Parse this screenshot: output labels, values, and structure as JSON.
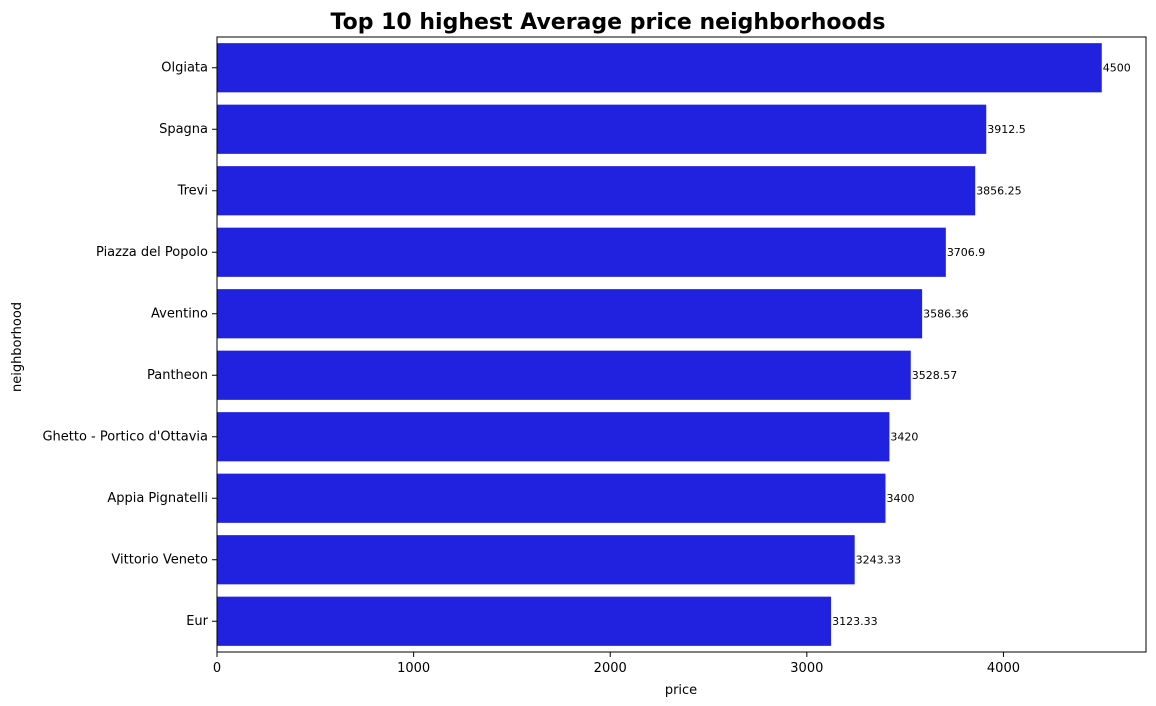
{
  "chart_data": {
    "type": "bar",
    "orientation": "horizontal",
    "title": "Top 10 highest Average price neighborhoods",
    "xlabel": "price",
    "ylabel": "neighborhood",
    "categories": [
      "Olgiata",
      "Spagna",
      "Trevi",
      "Piazza del Popolo",
      "Aventino",
      "Pantheon",
      "Ghetto - Portico d'Ottavia",
      "Appia Pignatelli",
      "Vittorio Veneto",
      "Eur"
    ],
    "values": [
      4500,
      3912.5,
      3856.25,
      3706.9,
      3586.36,
      3528.57,
      3420,
      3400,
      3243.33,
      3123.33
    ],
    "value_labels": [
      "4500",
      "3912.5",
      "3856.25",
      "3706.9",
      "3586.36",
      "3528.57",
      "3420",
      "3400",
      "3243.33",
      "3123.33"
    ],
    "xlim": [
      0,
      4725
    ],
    "xticks": [
      0,
      1000,
      2000,
      3000,
      4000
    ],
    "xtick_labels": [
      "0",
      "1000",
      "2000",
      "3000",
      "4000"
    ],
    "bar_color": "#2121e0",
    "grid": false,
    "legend": "none"
  }
}
